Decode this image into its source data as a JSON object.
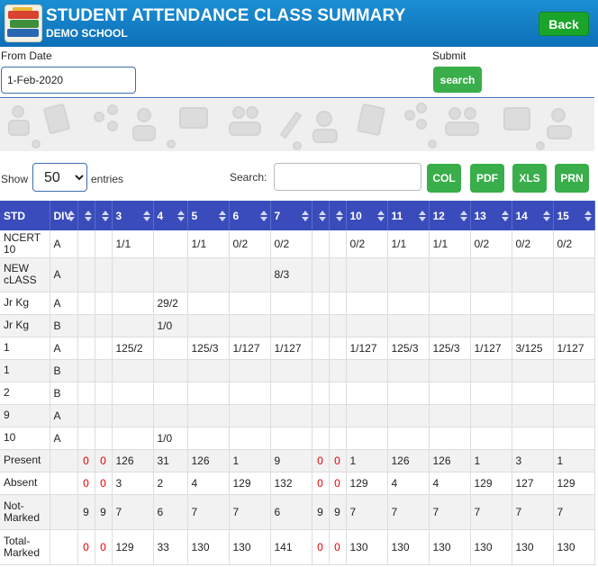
{
  "header": {
    "title": "STUDENT ATTENDANCE CLASS SUMMARY",
    "school": "DEMO SCHOOL",
    "back_label": "Back"
  },
  "filter": {
    "from_label": "From Date",
    "from_value": "1-Feb-2020",
    "submit_label": "Submit",
    "search_label": "search"
  },
  "controls": {
    "show_label": "Show",
    "entries_value": "50",
    "entries_label": "entries",
    "search_label": "Search:",
    "buttons": [
      "COL",
      "PDF",
      "XLS",
      "PRN"
    ]
  },
  "table": {
    "columns": [
      "STD",
      "DIV",
      "",
      "",
      "3",
      "4",
      "5",
      "6",
      "7",
      "",
      "",
      "10",
      "11",
      "12",
      "13",
      "14",
      "15"
    ],
    "rows": [
      [
        "NCERT 10",
        "A",
        "",
        "",
        "1/1",
        "",
        "1/1",
        "0/2",
        "0/2",
        "",
        "",
        "0/2",
        "1/1",
        "1/1",
        "0/2",
        "0/2",
        "0/2"
      ],
      [
        "NEW cLASS",
        "A",
        "",
        "",
        "",
        "",
        "",
        "",
        "8/3",
        "",
        "",
        "",
        "",
        "",
        "",
        "",
        ""
      ],
      [
        "Jr Kg",
        "A",
        "",
        "",
        "",
        "29/2",
        "",
        "",
        "",
        "",
        "",
        "",
        "",
        "",
        "",
        "",
        ""
      ],
      [
        "Jr Kg",
        "B",
        "",
        "",
        "",
        "1/0",
        "",
        "",
        "",
        "",
        "",
        "",
        "",
        "",
        "",
        "",
        ""
      ],
      [
        "1",
        "A",
        "",
        "",
        "125/2",
        "",
        "125/3",
        "1/127",
        "1/127",
        "",
        "",
        "1/127",
        "125/3",
        "125/3",
        "1/127",
        "3/125",
        "1/127"
      ],
      [
        "1",
        "B",
        "",
        "",
        "",
        "",
        "",
        "",
        "",
        "",
        "",
        "",
        "",
        "",
        "",
        "",
        ""
      ],
      [
        "2",
        "B",
        "",
        "",
        "",
        "",
        "",
        "",
        "",
        "",
        "",
        "",
        "",
        "",
        "",
        "",
        ""
      ],
      [
        "9",
        "A",
        "",
        "",
        "",
        "",
        "",
        "",
        "",
        "",
        "",
        "",
        "",
        "",
        "",
        "",
        ""
      ],
      [
        "10",
        "A",
        "",
        "",
        "",
        "1/0",
        "",
        "",
        "",
        "",
        "",
        "",
        "",
        "",
        "",
        "",
        ""
      ],
      [
        "Present",
        "",
        "0",
        "0",
        "126",
        "31",
        "126",
        "1",
        "9",
        "0",
        "0",
        "1",
        "126",
        "126",
        "1",
        "3",
        "1"
      ],
      [
        "Absent",
        "",
        "0",
        "0",
        "3",
        "2",
        "4",
        "129",
        "132",
        "0",
        "0",
        "129",
        "4",
        "4",
        "129",
        "127",
        "129"
      ],
      [
        "Not-Marked",
        "",
        "9",
        "9",
        "7",
        "6",
        "7",
        "7",
        "6",
        "9",
        "9",
        "7",
        "7",
        "7",
        "7",
        "7",
        "7"
      ],
      [
        "Total-Marked",
        "",
        "0",
        "0",
        "129",
        "33",
        "130",
        "130",
        "141",
        "0",
        "0",
        "130",
        "130",
        "130",
        "130",
        "130",
        "130"
      ]
    ]
  },
  "colors": {
    "header_bg": "#0d6fb8",
    "table_header_bg": "#3a4cbb",
    "button_green": "#39ae4a",
    "back_green": "#1aa52a",
    "zero_red": "#e60000"
  }
}
